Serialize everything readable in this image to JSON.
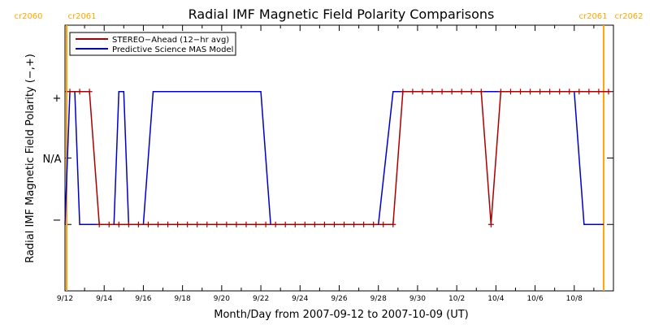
{
  "chart_data": {
    "type": "line",
    "title": "Radial IMF Magnetic Field Polarity Comparisons",
    "xlabel": "Month/Day from 2007-09-12 to 2007-10-09 (UT)",
    "ylabel": "Radial IMF Magnetic Field Polarity (−,+)",
    "xlim": [
      "2007-09-12T00:00",
      "2007-10-10T00:00"
    ],
    "x_tick_labels": [
      "9/12",
      "9/14",
      "9/16",
      "9/18",
      "9/20",
      "9/22",
      "9/24",
      "9/26",
      "9/28",
      "9/30",
      "10/2",
      "10/4",
      "10/6",
      "10/8"
    ],
    "y_categories": [
      {
        "label": "−",
        "value": -1
      },
      {
        "label": "N/A",
        "value": 0
      },
      {
        "label": "+",
        "value": 1
      }
    ],
    "ylim": [
      -2,
      2
    ],
    "legend_position": "top-left",
    "carrington_markers": [
      {
        "label_left": "cr2060",
        "label_right": "cr2061",
        "date": "2007-09-12T02:00",
        "color": "#ffa500"
      },
      {
        "label_left": "cr2061",
        "label_right": "cr2062",
        "date": "2007-10-09T12:00",
        "color": "#ffa500"
      }
    ],
    "series": [
      {
        "name": "STEREO−Ahead (12−hr avg)",
        "color": "#aa0000",
        "marker": "plus",
        "points": [
          [
            "2007-09-12T06:00",
            1
          ],
          [
            "2007-09-12T18:00",
            1
          ],
          [
            "2007-09-13T06:00",
            1
          ],
          [
            "2007-09-13T18:00",
            -1
          ],
          [
            "2007-09-14T06:00",
            -1
          ],
          [
            "2007-09-14T18:00",
            -1
          ],
          [
            "2007-09-15T06:00",
            -1
          ],
          [
            "2007-09-15T18:00",
            -1
          ],
          [
            "2007-09-16T06:00",
            -1
          ],
          [
            "2007-09-16T18:00",
            -1
          ],
          [
            "2007-09-17T06:00",
            -1
          ],
          [
            "2007-09-17T18:00",
            -1
          ],
          [
            "2007-09-18T06:00",
            -1
          ],
          [
            "2007-09-18T18:00",
            -1
          ],
          [
            "2007-09-19T06:00",
            -1
          ],
          [
            "2007-09-19T18:00",
            -1
          ],
          [
            "2007-09-20T06:00",
            -1
          ],
          [
            "2007-09-20T18:00",
            -1
          ],
          [
            "2007-09-21T06:00",
            -1
          ],
          [
            "2007-09-21T18:00",
            -1
          ],
          [
            "2007-09-22T06:00",
            -1
          ],
          [
            "2007-09-22T18:00",
            -1
          ],
          [
            "2007-09-23T06:00",
            -1
          ],
          [
            "2007-09-23T18:00",
            -1
          ],
          [
            "2007-09-24T06:00",
            -1
          ],
          [
            "2007-09-24T18:00",
            -1
          ],
          [
            "2007-09-25T06:00",
            -1
          ],
          [
            "2007-09-25T18:00",
            -1
          ],
          [
            "2007-09-26T06:00",
            -1
          ],
          [
            "2007-09-26T18:00",
            -1
          ],
          [
            "2007-09-27T06:00",
            -1
          ],
          [
            "2007-09-27T18:00",
            -1
          ],
          [
            "2007-09-28T06:00",
            -1
          ],
          [
            "2007-09-28T18:00",
            -1
          ],
          [
            "2007-09-29T06:00",
            1
          ],
          [
            "2007-09-29T18:00",
            1
          ],
          [
            "2007-09-30T06:00",
            1
          ],
          [
            "2007-09-30T18:00",
            1
          ],
          [
            "2007-10-01T06:00",
            1
          ],
          [
            "2007-10-01T18:00",
            1
          ],
          [
            "2007-10-02T06:00",
            1
          ],
          [
            "2007-10-02T18:00",
            1
          ],
          [
            "2007-10-03T06:00",
            1
          ],
          [
            "2007-10-03T18:00",
            -1
          ],
          [
            "2007-10-04T06:00",
            1
          ],
          [
            "2007-10-04T18:00",
            1
          ],
          [
            "2007-10-05T06:00",
            1
          ],
          [
            "2007-10-05T18:00",
            1
          ],
          [
            "2007-10-06T06:00",
            1
          ],
          [
            "2007-10-06T18:00",
            1
          ],
          [
            "2007-10-07T06:00",
            1
          ],
          [
            "2007-10-07T18:00",
            1
          ],
          [
            "2007-10-08T06:00",
            1
          ],
          [
            "2007-10-08T18:00",
            1
          ],
          [
            "2007-10-09T06:00",
            1
          ],
          [
            "2007-10-09T18:00",
            1
          ]
        ]
      },
      {
        "name": "Predictive Science MAS Model",
        "color": "#0000cc",
        "marker": "none",
        "points": [
          [
            "2007-09-12T00:00",
            -1
          ],
          [
            "2007-09-12T06:00",
            1
          ],
          [
            "2007-09-12T12:00",
            1
          ],
          [
            "2007-09-12T18:00",
            -1
          ],
          [
            "2007-09-14T12:00",
            -1
          ],
          [
            "2007-09-14T18:00",
            1
          ],
          [
            "2007-09-15T00:00",
            1
          ],
          [
            "2007-09-15T06:00",
            -1
          ],
          [
            "2007-09-16T00:00",
            -1
          ],
          [
            "2007-09-16T12:00",
            1
          ],
          [
            "2007-09-22T00:00",
            1
          ],
          [
            "2007-09-22T12:00",
            -1
          ],
          [
            "2007-09-28T00:00",
            -1
          ],
          [
            "2007-09-28T18:00",
            1
          ],
          [
            "2007-10-08T00:00",
            1
          ],
          [
            "2007-10-08T12:00",
            -1
          ],
          [
            "2007-10-09T12:00",
            -1
          ]
        ]
      }
    ]
  }
}
